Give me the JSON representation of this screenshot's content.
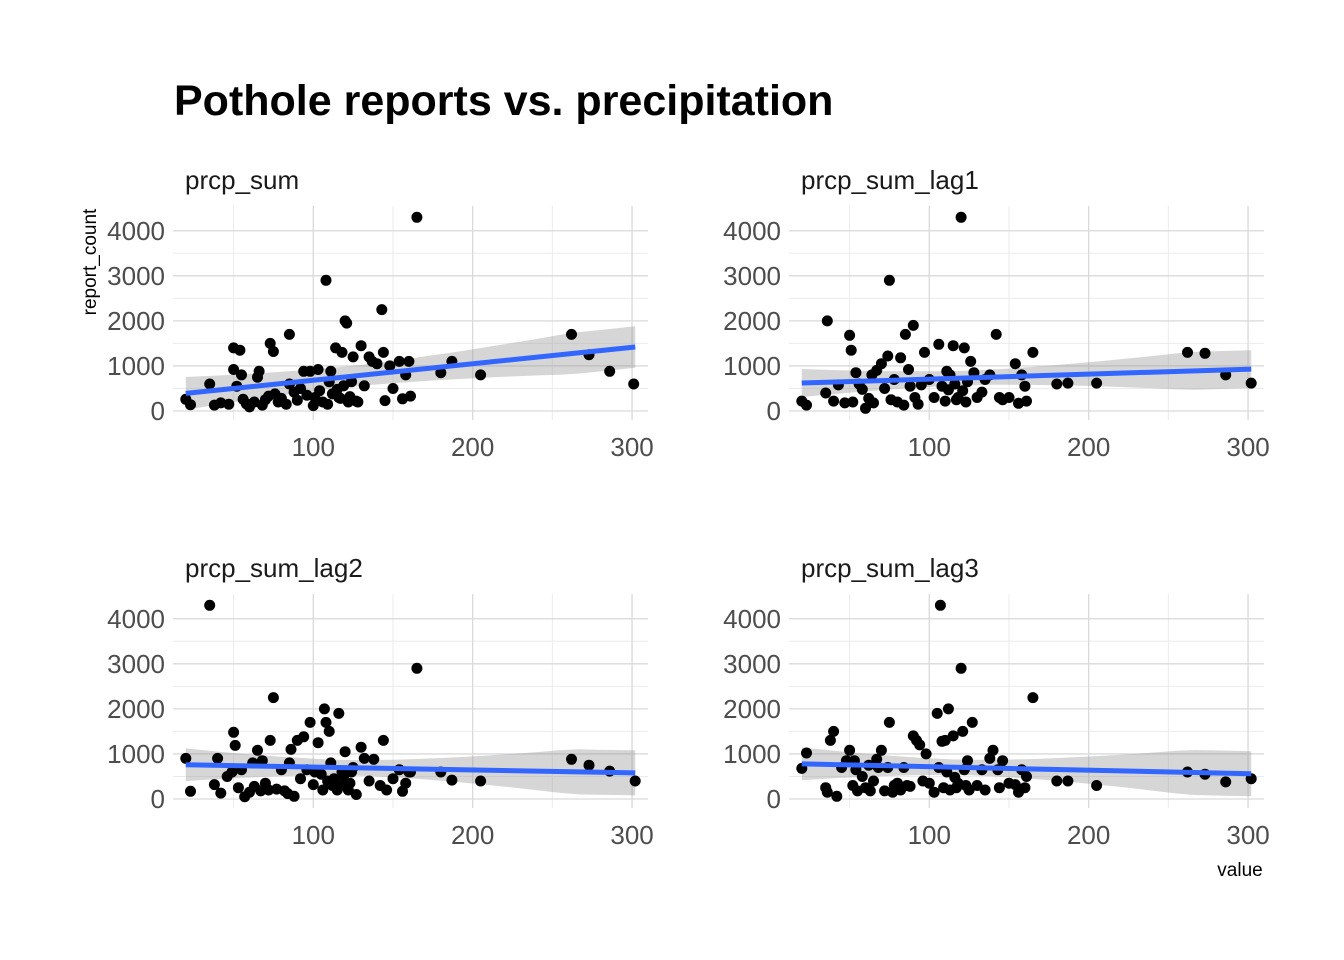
{
  "chart_data": {
    "type": "scatter",
    "title": "Pothole reports vs. precipitation",
    "xlabel": "value",
    "ylabel": "report_count",
    "xlim": [
      12,
      310
    ],
    "ylim": [
      -200,
      4550
    ],
    "xticks": [
      100,
      200,
      300
    ],
    "yticks": [
      0,
      1000,
      2000,
      3000,
      4000
    ],
    "grid": true,
    "smooth": "linear fit with confidence band",
    "colors": {
      "points": "#000000",
      "fit_line": "#3366FF",
      "band": "#999999",
      "grid": "#d9d9d9"
    },
    "panels": [
      {
        "label": "prcp_sum",
        "fit": {
          "x0": 20,
          "y0": 390,
          "x1": 302,
          "y1": 1420,
          "band_halfwidth": [
            230,
            460
          ]
        },
        "points": [
          [
            20,
            260
          ],
          [
            23,
            140
          ],
          [
            35,
            600
          ],
          [
            38,
            130
          ],
          [
            42,
            180
          ],
          [
            47,
            150
          ],
          [
            50,
            1400
          ],
          [
            50,
            920
          ],
          [
            52,
            550
          ],
          [
            54,
            1350
          ],
          [
            55,
            800
          ],
          [
            56,
            260
          ],
          [
            58,
            160
          ],
          [
            60,
            90
          ],
          [
            63,
            200
          ],
          [
            65,
            750
          ],
          [
            66,
            880
          ],
          [
            68,
            130
          ],
          [
            70,
            250
          ],
          [
            72,
            330
          ],
          [
            73,
            1500
          ],
          [
            75,
            1320
          ],
          [
            76,
            380
          ],
          [
            78,
            200
          ],
          [
            80,
            280
          ],
          [
            83,
            150
          ],
          [
            85,
            1700
          ],
          [
            85,
            600
          ],
          [
            88,
            420
          ],
          [
            90,
            240
          ],
          [
            92,
            500
          ],
          [
            94,
            880
          ],
          [
            96,
            350
          ],
          [
            98,
            880
          ],
          [
            100,
            120
          ],
          [
            101,
            300
          ],
          [
            103,
            920
          ],
          [
            104,
            450
          ],
          [
            106,
            200
          ],
          [
            108,
            2900
          ],
          [
            109,
            150
          ],
          [
            110,
            650
          ],
          [
            111,
            880
          ],
          [
            112,
            380
          ],
          [
            114,
            1400
          ],
          [
            115,
            480
          ],
          [
            116,
            300
          ],
          [
            117,
            280
          ],
          [
            118,
            1300
          ],
          [
            119,
            560
          ],
          [
            120,
            2000
          ],
          [
            121,
            1950
          ],
          [
            122,
            200
          ],
          [
            123,
            320
          ],
          [
            124,
            650
          ],
          [
            125,
            1200
          ],
          [
            127,
            220
          ],
          [
            128,
            200
          ],
          [
            130,
            1450
          ],
          [
            132,
            560
          ],
          [
            135,
            1200
          ],
          [
            137,
            1100
          ],
          [
            140,
            1050
          ],
          [
            143,
            2250
          ],
          [
            144,
            1300
          ],
          [
            145,
            230
          ],
          [
            148,
            1000
          ],
          [
            150,
            500
          ],
          [
            154,
            1100
          ],
          [
            156,
            270
          ],
          [
            158,
            800
          ],
          [
            160,
            1100
          ],
          [
            161,
            330
          ],
          [
            165,
            4300
          ],
          [
            180,
            850
          ],
          [
            187,
            1100
          ],
          [
            205,
            800
          ],
          [
            262,
            1700
          ],
          [
            273,
            1250
          ],
          [
            286,
            880
          ],
          [
            301,
            600
          ]
        ]
      },
      {
        "label": "prcp_sum_lag1",
        "fit": {
          "x0": 20,
          "y0": 620,
          "x1": 302,
          "y1": 930,
          "band_halfwidth": [
            160,
            420
          ]
        },
        "points": [
          [
            20,
            220
          ],
          [
            23,
            130
          ],
          [
            35,
            400
          ],
          [
            36,
            2000
          ],
          [
            40,
            220
          ],
          [
            43,
            580
          ],
          [
            47,
            180
          ],
          [
            50,
            1680
          ],
          [
            51,
            1350
          ],
          [
            52,
            200
          ],
          [
            54,
            850
          ],
          [
            56,
            600
          ],
          [
            58,
            480
          ],
          [
            60,
            60
          ],
          [
            62,
            280
          ],
          [
            64,
            800
          ],
          [
            65,
            180
          ],
          [
            67,
            900
          ],
          [
            70,
            1050
          ],
          [
            72,
            500
          ],
          [
            74,
            1220
          ],
          [
            75,
            2900
          ],
          [
            76,
            250
          ],
          [
            78,
            700
          ],
          [
            80,
            200
          ],
          [
            82,
            1180
          ],
          [
            84,
            130
          ],
          [
            85,
            1700
          ],
          [
            87,
            920
          ],
          [
            88,
            550
          ],
          [
            90,
            1900
          ],
          [
            91,
            300
          ],
          [
            93,
            150
          ],
          [
            95,
            580
          ],
          [
            97,
            1300
          ],
          [
            100,
            700
          ],
          [
            103,
            300
          ],
          [
            106,
            1480
          ],
          [
            108,
            550
          ],
          [
            110,
            220
          ],
          [
            111,
            880
          ],
          [
            112,
            470
          ],
          [
            113,
            800
          ],
          [
            115,
            1450
          ],
          [
            116,
            600
          ],
          [
            117,
            250
          ],
          [
            118,
            300
          ],
          [
            120,
            4300
          ],
          [
            121,
            450
          ],
          [
            122,
            1400
          ],
          [
            123,
            200
          ],
          [
            124,
            650
          ],
          [
            126,
            1100
          ],
          [
            128,
            850
          ],
          [
            130,
            300
          ],
          [
            133,
            420
          ],
          [
            135,
            700
          ],
          [
            138,
            800
          ],
          [
            142,
            1700
          ],
          [
            144,
            300
          ],
          [
            146,
            250
          ],
          [
            150,
            300
          ],
          [
            154,
            1050
          ],
          [
            156,
            170
          ],
          [
            158,
            800
          ],
          [
            160,
            550
          ],
          [
            161,
            220
          ],
          [
            165,
            1300
          ],
          [
            180,
            600
          ],
          [
            187,
            620
          ],
          [
            205,
            620
          ],
          [
            262,
            1300
          ],
          [
            273,
            1280
          ],
          [
            286,
            800
          ],
          [
            302,
            620
          ]
        ]
      },
      {
        "label": "prcp_sum_lag2",
        "fit": {
          "x0": 20,
          "y0": 760,
          "x1": 302,
          "y1": 580,
          "band_halfwidth": [
            170,
            500
          ]
        },
        "points": [
          [
            20,
            900
          ],
          [
            23,
            170
          ],
          [
            35,
            4300
          ],
          [
            38,
            320
          ],
          [
            40,
            900
          ],
          [
            42,
            130
          ],
          [
            46,
            500
          ],
          [
            49,
            600
          ],
          [
            50,
            1480
          ],
          [
            51,
            1190
          ],
          [
            53,
            250
          ],
          [
            55,
            650
          ],
          [
            57,
            50
          ],
          [
            60,
            150
          ],
          [
            62,
            800
          ],
          [
            63,
            280
          ],
          [
            65,
            1080
          ],
          [
            67,
            180
          ],
          [
            68,
            850
          ],
          [
            70,
            350
          ],
          [
            72,
            200
          ],
          [
            73,
            1300
          ],
          [
            75,
            2250
          ],
          [
            77,
            220
          ],
          [
            80,
            650
          ],
          [
            82,
            180
          ],
          [
            84,
            120
          ],
          [
            85,
            800
          ],
          [
            86,
            1100
          ],
          [
            88,
            60
          ],
          [
            90,
            1300
          ],
          [
            92,
            450
          ],
          [
            94,
            1380
          ],
          [
            96,
            650
          ],
          [
            98,
            1700
          ],
          [
            100,
            320
          ],
          [
            101,
            600
          ],
          [
            103,
            1250
          ],
          [
            105,
            550
          ],
          [
            106,
            200
          ],
          [
            107,
            2000
          ],
          [
            108,
            1700
          ],
          [
            109,
            400
          ],
          [
            110,
            1500
          ],
          [
            111,
            800
          ],
          [
            112,
            300
          ],
          [
            113,
            450
          ],
          [
            115,
            200
          ],
          [
            116,
            1900
          ],
          [
            117,
            300
          ],
          [
            118,
            600
          ],
          [
            119,
            500
          ],
          [
            120,
            1050
          ],
          [
            122,
            200
          ],
          [
            123,
            350
          ],
          [
            124,
            600
          ],
          [
            125,
            700
          ],
          [
            127,
            100
          ],
          [
            130,
            1150
          ],
          [
            132,
            900
          ],
          [
            135,
            400
          ],
          [
            138,
            880
          ],
          [
            142,
            300
          ],
          [
            144,
            1300
          ],
          [
            146,
            200
          ],
          [
            150,
            450
          ],
          [
            154,
            650
          ],
          [
            156,
            170
          ],
          [
            158,
            350
          ],
          [
            160,
            600
          ],
          [
            161,
            600
          ],
          [
            165,
            2900
          ],
          [
            180,
            600
          ],
          [
            187,
            420
          ],
          [
            205,
            400
          ],
          [
            262,
            880
          ],
          [
            273,
            750
          ],
          [
            286,
            620
          ],
          [
            302,
            400
          ]
        ]
      },
      {
        "label": "prcp_sum_lag3",
        "fit": {
          "x0": 20,
          "y0": 780,
          "x1": 302,
          "y1": 560,
          "band_halfwidth": [
            170,
            500
          ]
        },
        "points": [
          [
            20,
            680
          ],
          [
            23,
            1020
          ],
          [
            35,
            250
          ],
          [
            36,
            150
          ],
          [
            38,
            1300
          ],
          [
            40,
            1500
          ],
          [
            42,
            60
          ],
          [
            45,
            700
          ],
          [
            48,
            850
          ],
          [
            50,
            1080
          ],
          [
            52,
            300
          ],
          [
            53,
            850
          ],
          [
            54,
            650
          ],
          [
            55,
            180
          ],
          [
            58,
            500
          ],
          [
            60,
            250
          ],
          [
            62,
            750
          ],
          [
            63,
            180
          ],
          [
            65,
            400
          ],
          [
            67,
            880
          ],
          [
            68,
            700
          ],
          [
            70,
            1080
          ],
          [
            72,
            180
          ],
          [
            74,
            700
          ],
          [
            75,
            1700
          ],
          [
            77,
            150
          ],
          [
            78,
            300
          ],
          [
            80,
            350
          ],
          [
            82,
            200
          ],
          [
            84,
            700
          ],
          [
            86,
            300
          ],
          [
            88,
            280
          ],
          [
            90,
            1400
          ],
          [
            92,
            1300
          ],
          [
            94,
            1200
          ],
          [
            96,
            400
          ],
          [
            98,
            1000
          ],
          [
            100,
            350
          ],
          [
            103,
            150
          ],
          [
            105,
            1900
          ],
          [
            106,
            700
          ],
          [
            107,
            4300
          ],
          [
            108,
            1280
          ],
          [
            109,
            250
          ],
          [
            110,
            1300
          ],
          [
            111,
            600
          ],
          [
            112,
            2000
          ],
          [
            113,
            200
          ],
          [
            115,
            1400
          ],
          [
            116,
            480
          ],
          [
            117,
            250
          ],
          [
            118,
            350
          ],
          [
            120,
            2900
          ],
          [
            121,
            1500
          ],
          [
            122,
            650
          ],
          [
            123,
            300
          ],
          [
            124,
            850
          ],
          [
            125,
            200
          ],
          [
            127,
            1700
          ],
          [
            130,
            300
          ],
          [
            133,
            650
          ],
          [
            135,
            200
          ],
          [
            138,
            900
          ],
          [
            140,
            1080
          ],
          [
            143,
            650
          ],
          [
            144,
            250
          ],
          [
            146,
            850
          ],
          [
            150,
            350
          ],
          [
            154,
            320
          ],
          [
            156,
            150
          ],
          [
            158,
            650
          ],
          [
            160,
            250
          ],
          [
            161,
            500
          ],
          [
            165,
            2250
          ],
          [
            180,
            400
          ],
          [
            187,
            400
          ],
          [
            205,
            300
          ],
          [
            262,
            600
          ],
          [
            273,
            550
          ],
          [
            286,
            380
          ],
          [
            302,
            450
          ]
        ]
      }
    ]
  }
}
